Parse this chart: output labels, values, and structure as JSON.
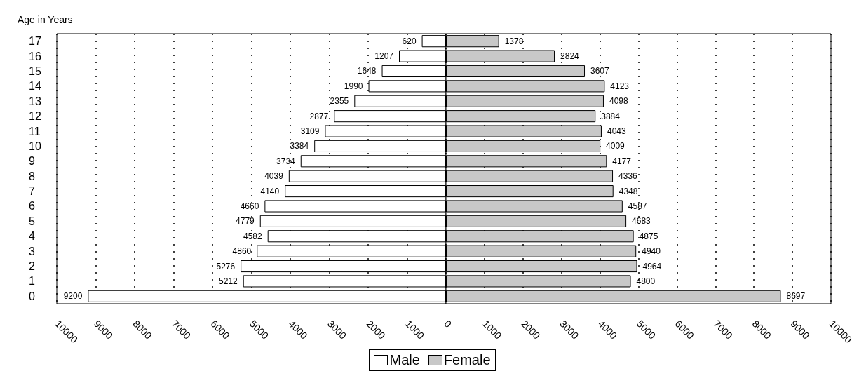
{
  "chart_data": [
    {
      "type": "bar",
      "orientation": "horizontal",
      "ylabel": "Age in Years",
      "categories": [
        "17",
        "16",
        "15",
        "14",
        "13",
        "12",
        "11",
        "10",
        "9",
        "8",
        "7",
        "6",
        "5",
        "4",
        "3",
        "2",
        "1",
        "0"
      ],
      "series": [
        {
          "name": "Male",
          "color": "#ffffff",
          "values": [
            620,
            1207,
            1648,
            1990,
            2355,
            2877,
            3109,
            3384,
            3734,
            4039,
            4140,
            4660,
            4779,
            4582,
            4860,
            5276,
            5212,
            9200
          ]
        }
      ],
      "xlim": [
        10000,
        0
      ],
      "xticks": [
        10000,
        9000,
        8000,
        7000,
        6000,
        5000,
        4000,
        3000,
        2000,
        1000,
        {
          "value": 0,
          "label": null
        }
      ],
      "grid": "x",
      "data_labels": true,
      "legend": "bottom"
    },
    {
      "type": "bar",
      "orientation": "horizontal",
      "categories": [
        "17",
        "16",
        "15",
        "14",
        "13",
        "12",
        "11",
        "10",
        "9",
        "8",
        "7",
        "6",
        "5",
        "4",
        "3",
        "2",
        "1",
        "0"
      ],
      "series": [
        {
          "name": "Female",
          "color": "#c8c8c8",
          "values": [
            1378,
            2824,
            3607,
            4123,
            4098,
            3884,
            4043,
            4009,
            4177,
            4336,
            4348,
            4587,
            4683,
            4875,
            4940,
            4964,
            4800,
            8697
          ]
        }
      ],
      "xlim": [
        0,
        10000
      ],
      "xticks": [
        0,
        1000,
        2000,
        3000,
        4000,
        5000,
        6000,
        7000,
        8000,
        9000,
        10000
      ],
      "grid": "x",
      "data_labels": true,
      "legend": "bottom",
      "tick_labels": "x"
    }
  ]
}
